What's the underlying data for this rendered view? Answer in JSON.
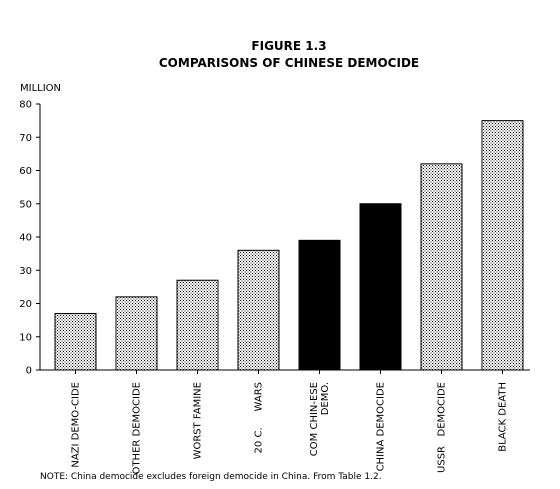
{
  "chart_data": {
    "type": "bar",
    "title": "FIGURE 1.3",
    "subtitle": "COMPARISONS OF CHINESE DEMOCIDE",
    "ylabel": "MILLION",
    "xlabel": "",
    "ylim": [
      0,
      80
    ],
    "yticks": [
      0,
      10,
      20,
      30,
      40,
      50,
      60,
      70,
      80
    ],
    "grid": false,
    "categories": [
      [
        "NAZI DEMO-CIDE"
      ],
      [
        "OTHER DEMOCIDE"
      ],
      [
        "WORST FAMINE"
      ],
      [
        "20 C.     WARS"
      ],
      [
        "COM CHIN-ESE",
        "DEMO."
      ],
      [
        "CHINA DEMOCIDE"
      ],
      [
        "USSR   DEMOCIDE"
      ],
      [
        "BLACK DEATH"
      ]
    ],
    "values": [
      17,
      22,
      27,
      36,
      39,
      50,
      62,
      75
    ],
    "fills": [
      "dotted",
      "dotted",
      "dotted",
      "dotted",
      "solid",
      "solid",
      "dotted",
      "dotted"
    ],
    "colors": {
      "solid": "#000000",
      "dotted": "#000000"
    }
  },
  "note": "NOTE: China democide excludes foreign democide in China. From Table 1.2."
}
